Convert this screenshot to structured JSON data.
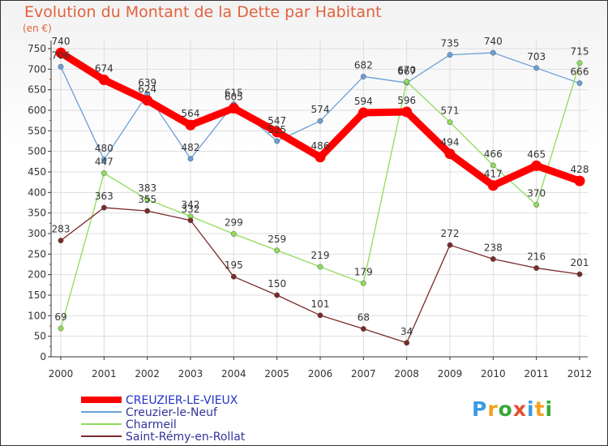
{
  "title": "Evolution du Montant de la Dette par Habitant",
  "unit": "(en €)",
  "logo": "Proxiti",
  "chart_data": {
    "type": "line",
    "x": [
      "2000",
      "2001",
      "2002",
      "2003",
      "2004",
      "2005",
      "2006",
      "2007",
      "2008",
      "2009",
      "2010",
      "2011",
      "2012"
    ],
    "ylim": [
      0,
      750
    ],
    "yticks": [
      0,
      50,
      100,
      150,
      200,
      250,
      300,
      350,
      400,
      450,
      500,
      550,
      600,
      650,
      700,
      750
    ],
    "grid": true,
    "legend_position": "bottom-left",
    "series": [
      {
        "name": "CREUZIER-LE-VIEUX",
        "color": "#ff0000",
        "values": [
          740,
          674,
          624,
          564,
          605,
          547,
          486,
          594,
          596,
          494,
          417,
          465,
          428
        ]
      },
      {
        "name": "Creuzier-le-Neuf",
        "color": "#6aa0d8",
        "values": [
          706,
          480,
          639,
          482,
          615,
          525,
          574,
          682,
          667,
          735,
          740,
          703,
          666
        ]
      },
      {
        "name": "Charmeil",
        "color": "#8fdc5a",
        "values": [
          69,
          447,
          383,
          342,
          299,
          259,
          219,
          179,
          670,
          571,
          466,
          370,
          715
        ]
      },
      {
        "name": "Saint-Rémy-en-Rollat",
        "color": "#7a2a2a",
        "values": [
          283,
          363,
          355,
          332,
          195,
          150,
          101,
          68,
          34,
          272,
          238,
          216,
          201
        ]
      }
    ]
  }
}
